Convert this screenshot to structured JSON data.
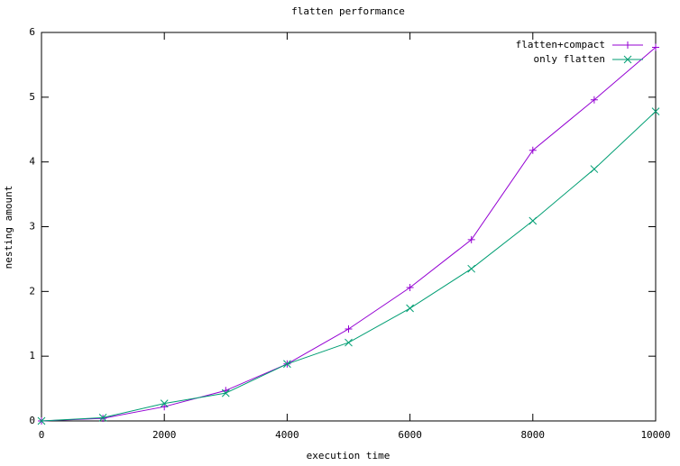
{
  "chart_data": {
    "type": "line",
    "title": "flatten performance",
    "x_label": "execution time",
    "y_label": "nesting amount",
    "x": [
      0,
      1000,
      2000,
      3000,
      4000,
      5000,
      6000,
      7000,
      8000,
      9000,
      10000
    ],
    "series": [
      {
        "name": "flatten+compact",
        "color": "#9400d3",
        "marker": "+",
        "values": [
          0,
          0.04,
          0.22,
          0.47,
          0.88,
          1.42,
          2.06,
          2.8,
          4.18,
          4.96,
          5.77
        ]
      },
      {
        "name": "only flatten",
        "color": "#009e73",
        "marker": "x",
        "values": [
          0,
          0.05,
          0.27,
          0.43,
          0.88,
          1.21,
          1.74,
          2.35,
          3.09,
          3.89,
          4.78
        ]
      }
    ],
    "xlim": [
      0,
      10000
    ],
    "xticks": [
      0,
      2000,
      4000,
      6000,
      8000,
      10000
    ],
    "ylim": [
      0,
      6
    ],
    "yticks": [
      0,
      1,
      2,
      3,
      4,
      5,
      6
    ],
    "grid": false,
    "legend": "top-right"
  }
}
